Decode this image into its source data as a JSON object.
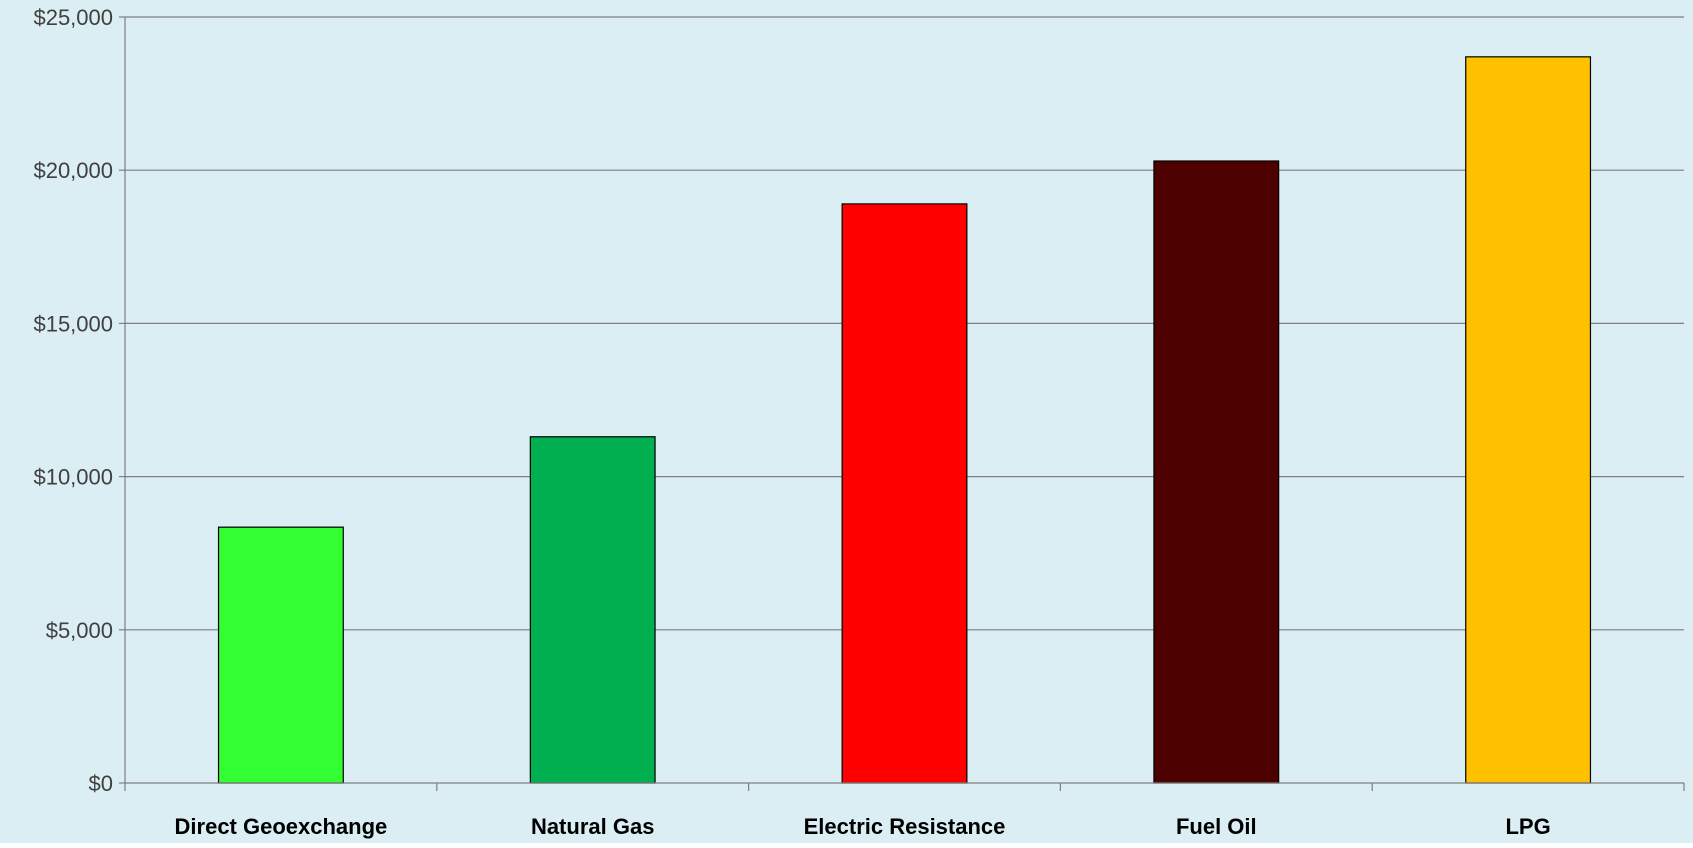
{
  "chart_data": {
    "type": "bar",
    "title": "",
    "xlabel": "",
    "ylabel": "",
    "categories": [
      "Direct Geoexchange",
      "Natural Gas",
      "Electric Resistance",
      "Fuel Oil",
      "LPG"
    ],
    "values": [
      8350,
      11300,
      18900,
      20300,
      23700
    ],
    "colors": [
      "#33FF33",
      "#00B050",
      "#FF0000",
      "#4D0000",
      "#FFC000"
    ],
    "ylim": [
      0,
      25000
    ],
    "yticks": [
      0,
      5000,
      10000,
      15000,
      20000,
      25000
    ],
    "ytick_labels": [
      "$0",
      "$5,000",
      "$10,000",
      "$15,000",
      "$20,000",
      "$25,000"
    ],
    "grid": true,
    "legend": "none",
    "background_color": "#DAEEF3"
  }
}
